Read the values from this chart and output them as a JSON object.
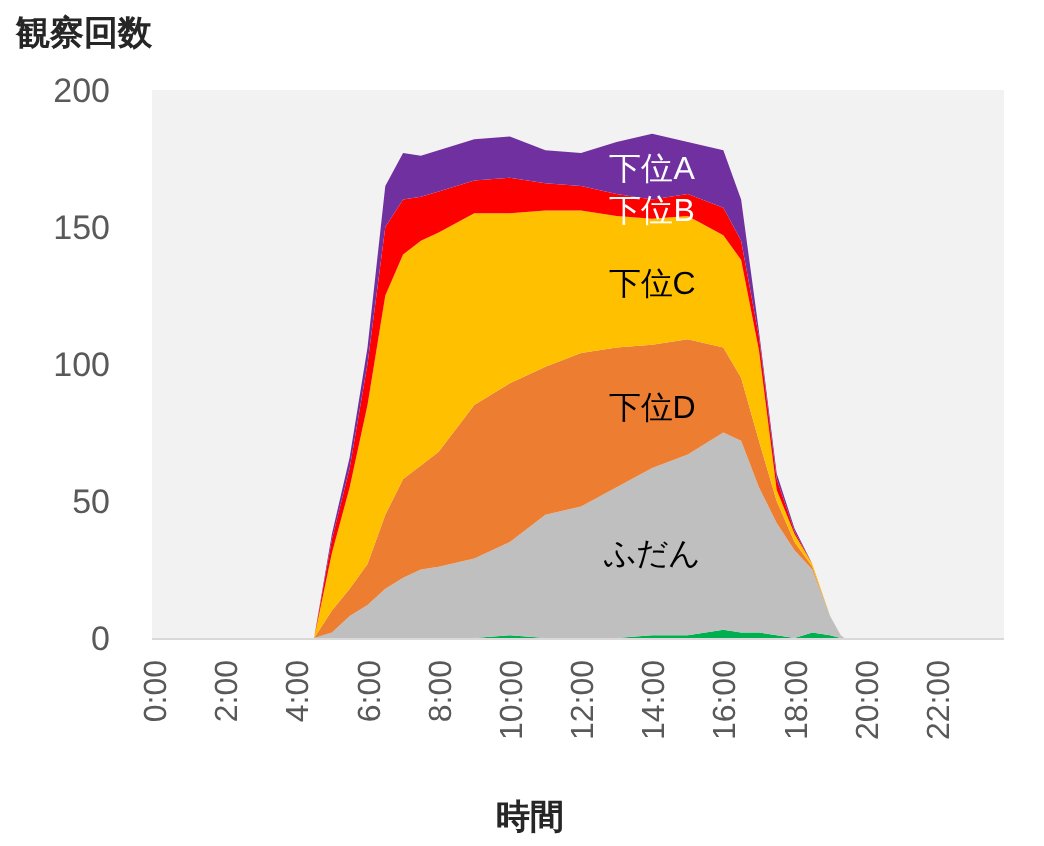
{
  "chart_data": {
    "type": "area",
    "stacked": true,
    "ylabel": "観察回数",
    "xlabel": "時間",
    "x": [
      4.5,
      5,
      5.5,
      6,
      6.5,
      7,
      7.5,
      8,
      9,
      10,
      11,
      12,
      13,
      14,
      15,
      16,
      16.5,
      17,
      17.5,
      18,
      18.5,
      19,
      19.3,
      19.4
    ],
    "xlim": [
      0,
      24
    ],
    "xticks": [
      {
        "value": 0,
        "label": "0:00"
      },
      {
        "value": 2,
        "label": "2:00"
      },
      {
        "value": 4,
        "label": "4:00"
      },
      {
        "value": 6,
        "label": "6:00"
      },
      {
        "value": 8,
        "label": "8:00"
      },
      {
        "value": 10,
        "label": "10:00"
      },
      {
        "value": 12,
        "label": "12:00"
      },
      {
        "value": 14,
        "label": "14:00"
      },
      {
        "value": 16,
        "label": "16:00"
      },
      {
        "value": 18,
        "label": "18:00"
      },
      {
        "value": 20,
        "label": "20:00"
      },
      {
        "value": 22,
        "label": "22:00"
      }
    ],
    "ylim": [
      0,
      200
    ],
    "yticks": [
      0,
      50,
      100,
      150,
      200
    ],
    "grid": false,
    "legend": false,
    "series": [
      {
        "color": "#00b050",
        "values": [
          0,
          0,
          0,
          0,
          0,
          0,
          0,
          0,
          0,
          1,
          0,
          0,
          0,
          1,
          1,
          3,
          2,
          2,
          1,
          0,
          2,
          1,
          0,
          0
        ]
      },
      {
        "name": "ふだん",
        "color": "#bfbfbf",
        "values": [
          0,
          2,
          8,
          12,
          18,
          22,
          25,
          26,
          29,
          34,
          45,
          48,
          55,
          61,
          66,
          72,
          70,
          53,
          41,
          32,
          23,
          7,
          1,
          0
        ]
      },
      {
        "name": "下位D",
        "color": "#ed7d31",
        "values": [
          0,
          8,
          10,
          15,
          27,
          36,
          38,
          42,
          56,
          58,
          54,
          56,
          51,
          45,
          42,
          31,
          23,
          17,
          8,
          3,
          1,
          0,
          0,
          0
        ]
      },
      {
        "name": "下位C",
        "color": "#ffc000",
        "values": [
          0,
          21,
          37,
          58,
          80,
          82,
          82,
          80,
          70,
          62,
          57,
          52,
          48,
          46,
          45,
          41,
          43,
          33,
          4,
          3,
          1,
          0,
          0,
          0
        ]
      },
      {
        "name": "下位B",
        "color": "#ff0000",
        "values": [
          0,
          5,
          7,
          15,
          25,
          20,
          16,
          15,
          12,
          13,
          10,
          9,
          8,
          7,
          8,
          10,
          7,
          5,
          4,
          1,
          0,
          0,
          0,
          0
        ]
      },
      {
        "name": "下位A",
        "color": "#7030a0",
        "values": [
          0,
          2,
          4,
          6,
          15,
          17,
          15,
          15,
          15,
          15,
          12,
          12,
          19,
          24,
          19,
          21,
          15,
          2,
          2,
          1,
          0,
          0,
          0,
          0
        ]
      }
    ]
  }
}
